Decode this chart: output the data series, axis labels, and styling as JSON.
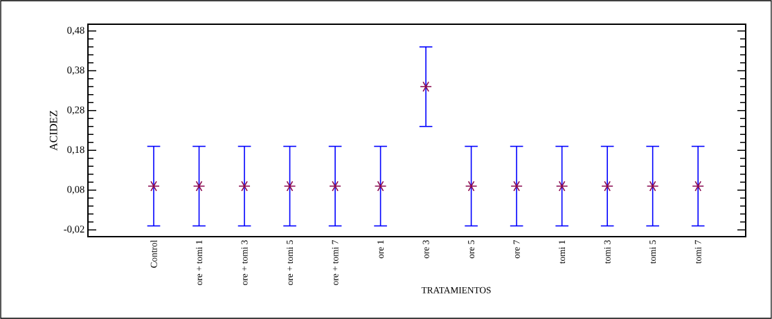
{
  "chart_data": {
    "type": "scatter",
    "xlabel": "TRATAMIENTOS",
    "ylabel": "ACIDEZ",
    "categories": [
      "Control",
      "ore + tomi 1",
      "ore + tomi 3",
      "ore + tomi 5",
      "ore + tomi 7",
      "ore 1",
      "ore 3",
      "ore 5",
      "ore 7",
      "tomi 1",
      "tomi 3",
      "tomi 5",
      "tomi 7"
    ],
    "series": [
      {
        "color": "#8b0a50",
        "values": [
          0.09,
          0.09,
          0.09,
          0.09,
          0.09,
          0.09,
          0.34,
          0.09,
          0.09,
          0.09,
          0.09,
          0.09,
          0.09
        ],
        "errors": [
          0.1,
          0.1,
          0.1,
          0.1,
          0.1,
          0.1,
          0.1,
          0.1,
          0.1,
          0.1,
          0.1,
          0.1,
          0.1
        ]
      }
    ],
    "marker": "cross",
    "grid": false,
    "ylim": [
      -0.037,
      0.497
    ],
    "yticks": [
      {
        "value": -0.02,
        "label": "-0,02"
      },
      {
        "value": 0.08,
        "label": "0,08"
      },
      {
        "value": 0.18,
        "label": "0,18"
      },
      {
        "value": 0.28,
        "label": "0,28"
      },
      {
        "value": 0.38,
        "label": "0,38"
      },
      {
        "value": 0.48,
        "label": "0,48"
      }
    ]
  }
}
